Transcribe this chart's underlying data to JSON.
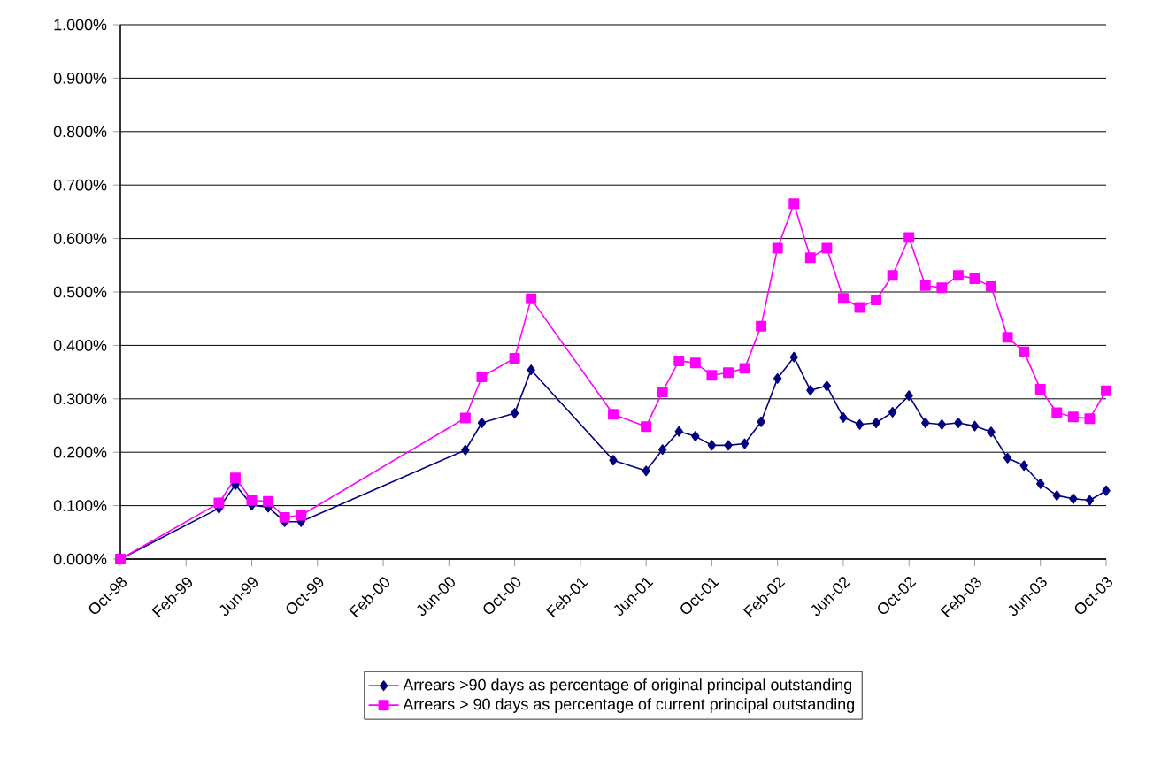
{
  "chart_data": {
    "type": "line",
    "x": [
      "1998-10",
      "1999-04",
      "1999-05",
      "1999-06",
      "1999-07",
      "1999-08",
      "1999-09",
      "2000-07",
      "2000-08",
      "2000-10",
      "2000-11",
      "2001-04",
      "2001-06",
      "2001-07",
      "2001-08",
      "2001-09",
      "2001-10",
      "2001-11",
      "2001-12",
      "2002-01",
      "2002-02",
      "2002-03",
      "2002-04",
      "2002-05",
      "2002-06",
      "2002-07",
      "2002-08",
      "2002-09",
      "2002-10",
      "2002-11",
      "2002-12",
      "2003-01",
      "2003-02",
      "2003-03",
      "2003-04",
      "2003-05",
      "2003-06",
      "2003-07",
      "2003-08",
      "2003-09",
      "2003-10"
    ],
    "series": [
      {
        "name": "Arrears >90 days as percentage of original principal outstanding",
        "color": "#000080",
        "marker": "diamond",
        "values": [
          0,
          0.095,
          0.139,
          0.101,
          0.097,
          0.07,
          0.07,
          0.204,
          0.255,
          0.273,
          0.354,
          0.185,
          0.165,
          0.205,
          0.239,
          0.23,
          0.213,
          0.213,
          0.216,
          0.257,
          0.338,
          0.378,
          0.316,
          0.324,
          0.265,
          0.252,
          0.255,
          0.275,
          0.306,
          0.255,
          0.252,
          0.255,
          0.249,
          0.238,
          0.189,
          0.175,
          0.141,
          0.119,
          0.113,
          0.11,
          0.128
        ]
      },
      {
        "name": "Arrears > 90 days as percentage of current principal outstanding",
        "color": "#ff00ff",
        "marker": "square",
        "values": [
          0,
          0.105,
          0.152,
          0.11,
          0.108,
          0.078,
          0.082,
          0.264,
          0.341,
          0.376,
          0.487,
          0.271,
          0.248,
          0.313,
          0.371,
          0.367,
          0.344,
          0.349,
          0.357,
          0.436,
          0.582,
          0.665,
          0.564,
          0.582,
          0.488,
          0.471,
          0.485,
          0.531,
          0.602,
          0.512,
          0.508,
          0.531,
          0.525,
          0.51,
          0.415,
          0.388,
          0.318,
          0.274,
          0.266,
          0.263,
          0.315
        ]
      }
    ],
    "xlim": [
      "1998-10",
      "2003-10"
    ],
    "xticks": [
      {
        "value": "1998-10",
        "label": "Oct-98"
      },
      {
        "value": "1999-02",
        "label": "Feb-99"
      },
      {
        "value": "1999-06",
        "label": "Jun-99"
      },
      {
        "value": "1999-10",
        "label": "Oct-99"
      },
      {
        "value": "2000-02",
        "label": "Feb-00"
      },
      {
        "value": "2000-06",
        "label": "Jun-00"
      },
      {
        "value": "2000-10",
        "label": "Oct-00"
      },
      {
        "value": "2001-02",
        "label": "Feb-01"
      },
      {
        "value": "2001-06",
        "label": "Jun-01"
      },
      {
        "value": "2001-10",
        "label": "Oct-01"
      },
      {
        "value": "2002-02",
        "label": "Feb-02"
      },
      {
        "value": "2002-06",
        "label": "Jun-02"
      },
      {
        "value": "2002-10",
        "label": "Oct-02"
      },
      {
        "value": "2003-02",
        "label": "Feb-03"
      },
      {
        "value": "2003-06",
        "label": "Jun-03"
      },
      {
        "value": "2003-10",
        "label": "Oct-03"
      }
    ],
    "ylim": [
      0,
      1
    ],
    "yticks": [
      {
        "value": 0,
        "label": "0.000%"
      },
      {
        "value": 0.1,
        "label": "0.100%"
      },
      {
        "value": 0.2,
        "label": "0.200%"
      },
      {
        "value": 0.3,
        "label": "0.300%"
      },
      {
        "value": 0.4,
        "label": "0.400%"
      },
      {
        "value": 0.5,
        "label": "0.500%"
      },
      {
        "value": 0.6,
        "label": "0.600%"
      },
      {
        "value": 0.7,
        "label": "0.700%"
      },
      {
        "value": 0.8,
        "label": "0.800%"
      },
      {
        "value": 0.9,
        "label": "0.900%"
      },
      {
        "value": 1,
        "label": "1.000%"
      }
    ],
    "grid": "y",
    "legend": "bottom",
    "line_style": "solid"
  }
}
